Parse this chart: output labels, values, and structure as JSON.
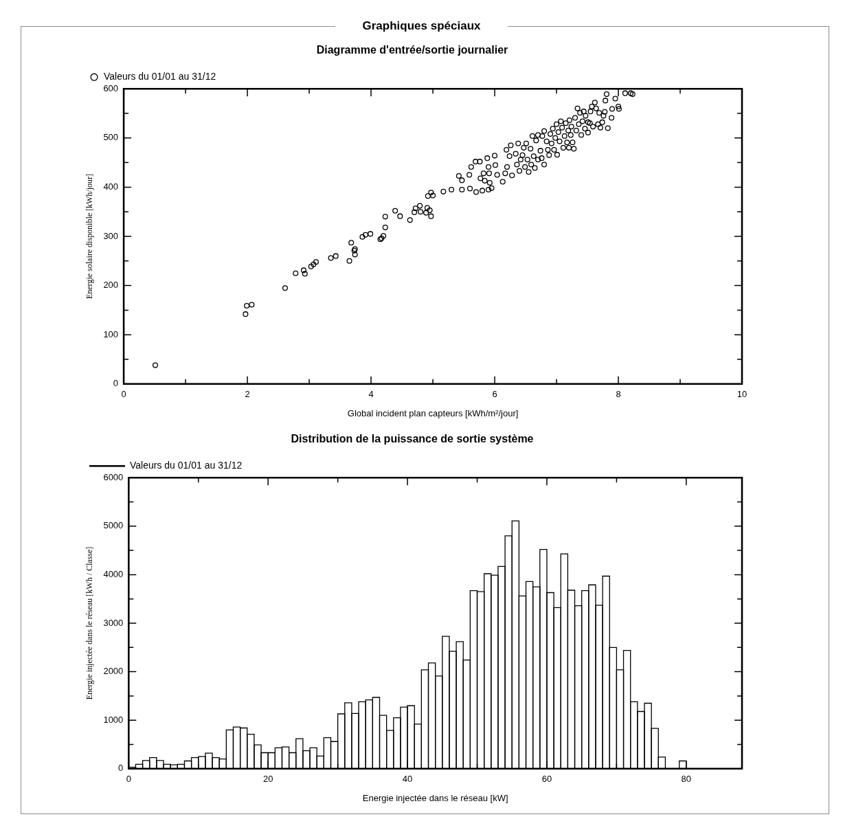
{
  "chart_data": [
    {
      "type": "scatter",
      "title": "Graphiques spéciaux",
      "subtitle": "Diagramme d'entrée/sortie journalier",
      "xlabel": "Global incident plan capteurs [kWh/m²/jour]",
      "ylabel": "Energie solaire disponible [kWh/jour]",
      "marker": "circle",
      "legend": "top left",
      "x": [
        0.51,
        1.97,
        1.99,
        2.07,
        2.61,
        2.78,
        2.91,
        2.93,
        3.03,
        3.07,
        3.11,
        3.35,
        3.43,
        3.65,
        3.68,
        3.73,
        3.74,
        3.74,
        3.86,
        3.91,
        3.99,
        4.15,
        4.17,
        4.2,
        4.23,
        4.23,
        4.39,
        4.47,
        4.63,
        4.7,
        4.72,
        4.79,
        4.8,
        4.89,
        4.91,
        4.95,
        4.97,
        4.92,
        4.97,
        5.0,
        5.17,
        5.3,
        5.47,
        5.6,
        5.7,
        5.8,
        5.9,
        5.95,
        5.42,
        5.47,
        5.59,
        5.62,
        5.69,
        5.76,
        5.77,
        5.82,
        5.84,
        5.88,
        5.91,
        5.92,
        5.9,
        6.0,
        6.01,
        6.04,
        6.13,
        6.17,
        6.19,
        6.2,
        6.24,
        6.26,
        6.28,
        6.34,
        6.36,
        6.38,
        6.4,
        6.42,
        6.45,
        6.47,
        6.49,
        6.51,
        6.53,
        6.55,
        6.58,
        6.59,
        6.61,
        6.63,
        6.65,
        6.67,
        6.7,
        6.7,
        6.74,
        6.76,
        6.77,
        6.8,
        6.8,
        6.84,
        6.86,
        6.88,
        6.9,
        6.92,
        6.94,
        6.96,
        6.98,
        7.0,
        7.01,
        7.03,
        7.05,
        7.07,
        7.09,
        7.11,
        7.13,
        7.15,
        7.17,
        7.19,
        7.2,
        7.21,
        7.23,
        7.24,
        7.26,
        7.28,
        7.3,
        7.32,
        7.34,
        7.36,
        7.38,
        7.4,
        7.42,
        7.44,
        7.46,
        7.47,
        7.51,
        7.51,
        7.54,
        7.55,
        7.57,
        7.59,
        7.62,
        7.64,
        7.67,
        7.69,
        7.71,
        7.74,
        7.76,
        7.78,
        7.79,
        7.81,
        7.83,
        7.89,
        7.9,
        7.95,
        8.0,
        8.01,
        8.11,
        8.2,
        8.23
      ],
      "series": [
        {
          "name": "Valeurs du 01/01 au 31/12",
          "color": "#000000",
          "values": [
            38,
            142,
            159,
            161,
            195,
            225,
            231,
            224,
            239,
            243,
            248,
            256,
            260,
            250,
            287,
            271,
            274,
            263,
            299,
            303,
            305,
            294,
            296,
            301,
            318,
            340,
            352,
            341,
            333,
            349,
            357,
            362,
            350,
            348,
            358,
            353,
            341,
            382,
            389,
            383,
            391,
            395,
            395,
            397,
            390,
            393,
            395,
            398,
            423,
            414,
            425,
            441,
            452,
            452,
            418,
            428,
            413,
            459,
            428,
            409,
            441,
            464,
            445,
            425,
            411,
            428,
            476,
            441,
            463,
            485,
            424,
            468,
            446,
            489,
            433,
            456,
            465,
            480,
            441,
            489,
            456,
            431,
            478,
            446,
            504,
            463,
            439,
            495,
            456,
            506,
            474,
            459,
            504,
            446,
            514,
            493,
            476,
            465,
            508,
            489,
            519,
            476,
            500,
            528,
            466,
            512,
            493,
            534,
            521,
            480,
            504,
            530,
            491,
            515,
            480,
            536,
            506,
            523,
            491,
            478,
            541,
            515,
            560,
            528,
            551,
            506,
            534,
            554,
            519,
            545,
            511,
            532,
            530,
            554,
            564,
            523,
            572,
            560,
            528,
            551,
            521,
            532,
            545,
            553,
            576,
            589,
            520,
            541,
            559,
            580,
            564,
            559,
            591,
            591,
            589
          ]
        }
      ],
      "xlim": [
        0,
        10
      ],
      "ylim": [
        0,
        600
      ],
      "xticks": [
        0,
        {
          "value": 1,
          "label": null
        },
        2,
        {
          "value": 3,
          "label": null
        },
        4,
        {
          "value": 5,
          "label": null
        },
        6,
        {
          "value": 7,
          "label": null
        },
        8,
        {
          "value": 9,
          "label": null
        },
        10
      ],
      "yticks": [
        0,
        {
          "value": 50,
          "label": null
        },
        100,
        {
          "value": 150,
          "label": null
        },
        200,
        {
          "value": 250,
          "label": null
        },
        300,
        {
          "value": 350,
          "label": null
        },
        400,
        {
          "value": 450,
          "label": null
        },
        500,
        {
          "value": 550,
          "label": null
        },
        600
      ]
    },
    {
      "type": "histogram",
      "title": "Distribution de la puissance de sortie système",
      "xlabel": "Energie injectée dans le réseau [kW]",
      "ylabel": "Energie injectée dans le réseau [kWh / Classe]",
      "legend": "top left",
      "line_style": "solid",
      "bins": [
        0,
        1,
        2,
        3,
        4,
        5,
        6,
        7,
        8,
        9,
        10,
        11,
        12,
        13,
        14,
        15,
        16,
        17,
        18,
        19,
        20,
        21,
        22,
        23,
        24,
        25,
        26,
        27,
        28,
        29,
        30,
        31,
        32,
        33,
        34,
        35,
        36,
        37,
        38,
        39,
        40,
        41,
        42,
        43,
        44,
        45,
        46,
        47,
        48,
        49,
        50,
        51,
        52,
        53,
        54,
        55,
        56,
        57,
        58,
        59,
        60,
        61,
        62,
        63,
        64,
        65,
        66,
        67,
        68,
        69,
        70,
        71,
        72,
        73,
        74,
        75,
        76,
        77,
        78,
        79,
        80
      ],
      "series": [
        {
          "name": "Valeurs du 01/01 au 31/12",
          "color": "#000000",
          "values": [
            30,
            90,
            170,
            230,
            170,
            90,
            80,
            90,
            160,
            230,
            250,
            320,
            230,
            200,
            800,
            860,
            840,
            710,
            490,
            330,
            330,
            430,
            450,
            330,
            620,
            370,
            430,
            260,
            640,
            560,
            1130,
            1360,
            1140,
            1380,
            1420,
            1470,
            1100,
            790,
            1050,
            1270,
            1300,
            920,
            2040,
            2180,
            1910,
            2730,
            2420,
            2620,
            2240,
            3670,
            3650,
            4020,
            3990,
            4170,
            4800,
            5110,
            3560,
            3860,
            3750,
            4520,
            3630,
            3320,
            4430,
            3680,
            3360,
            3670,
            3790,
            3370,
            3970,
            2500,
            2040,
            2440,
            1380,
            1180,
            1350,
            830,
            240,
            0,
            0,
            160
          ]
        }
      ],
      "xlim": [
        0,
        88
      ],
      "ylim": [
        0,
        6000
      ],
      "xticks": [
        0,
        {
          "value": 10,
          "label": null
        },
        20,
        {
          "value": 30,
          "label": null
        },
        40,
        {
          "value": 50,
          "label": null
        },
        60,
        {
          "value": 70,
          "label": null
        },
        80
      ],
      "yticks": [
        0,
        {
          "value": 500,
          "label": null
        },
        1000,
        {
          "value": 1500,
          "label": null
        },
        2000,
        {
          "value": 2500,
          "label": null
        },
        3000,
        {
          "value": 3500,
          "label": null
        },
        4000,
        {
          "value": 4500,
          "label": null
        },
        5000,
        {
          "value": 5500,
          "label": null
        },
        6000
      ]
    }
  ]
}
